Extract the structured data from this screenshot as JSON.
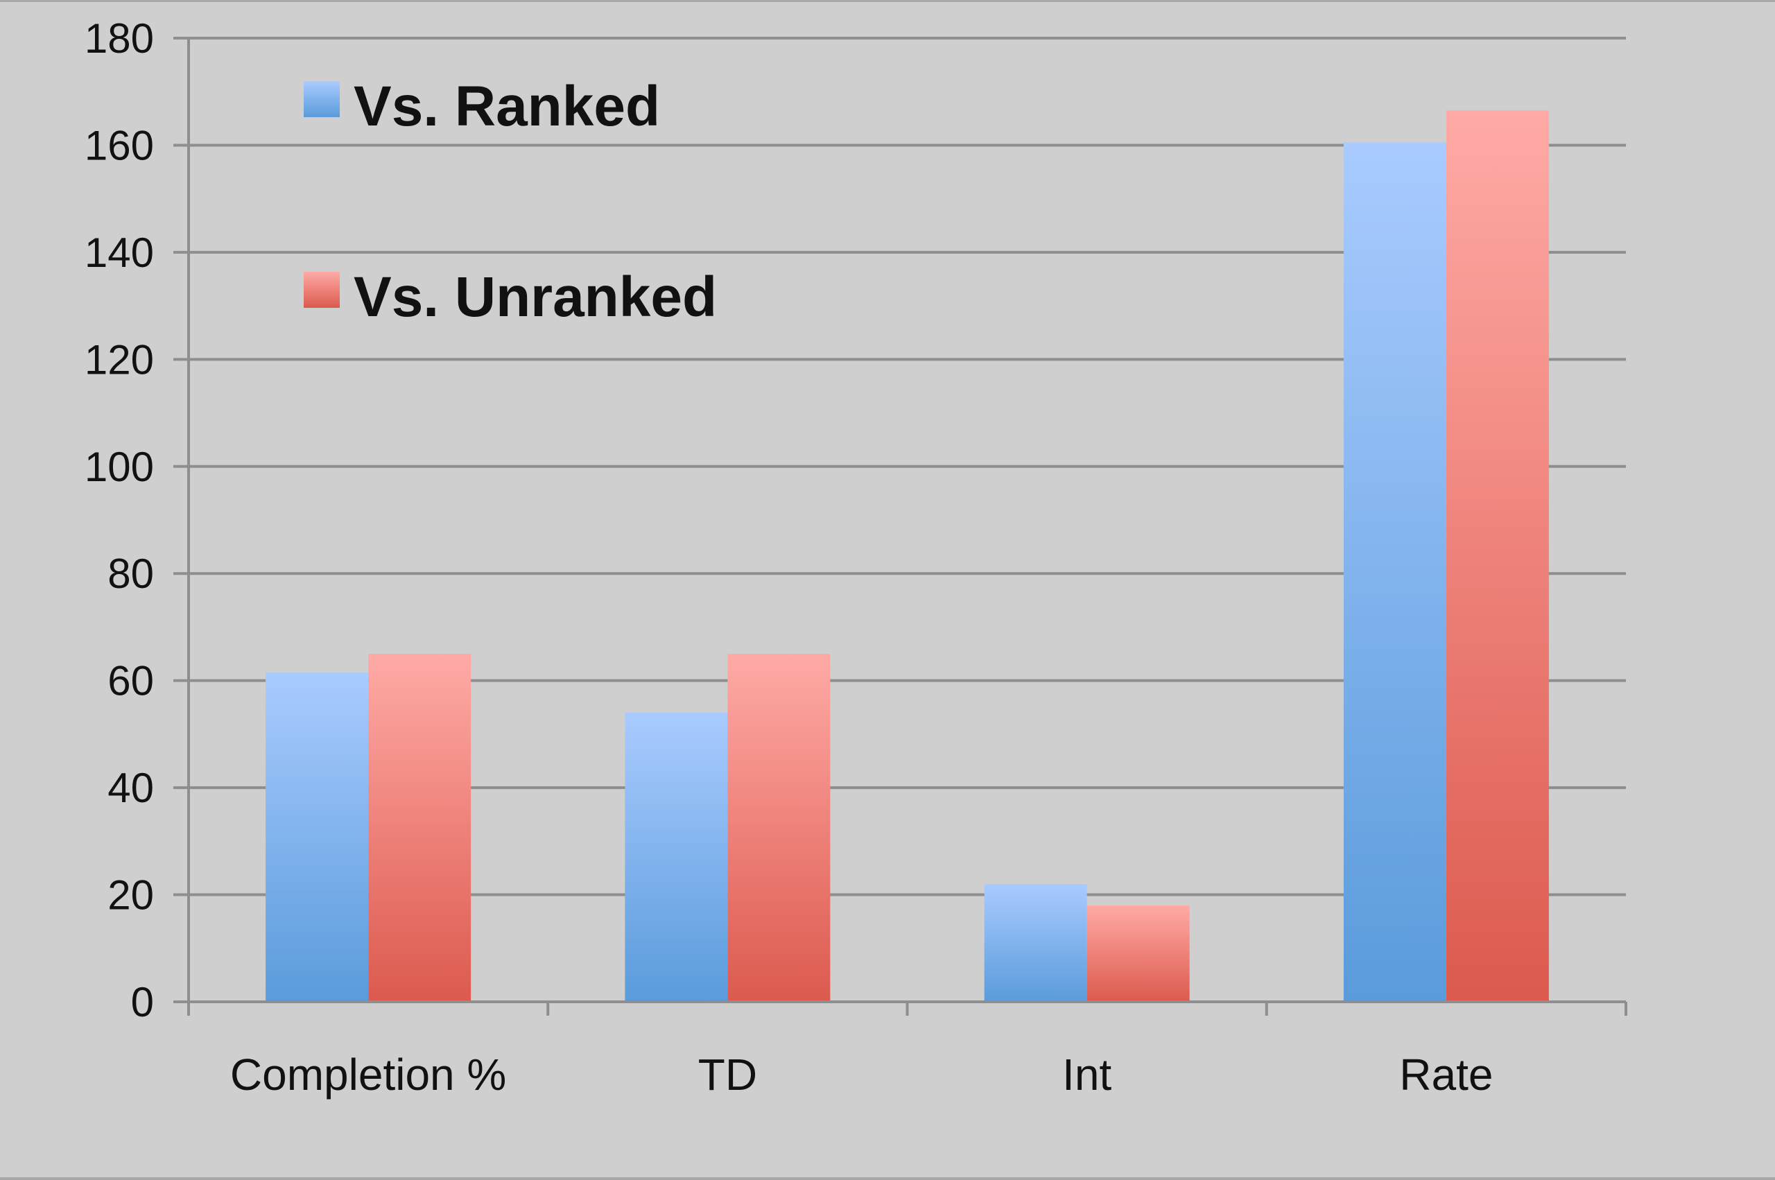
{
  "chart_data": {
    "type": "bar",
    "categories": [
      "Completion %",
      "TD",
      "Int",
      "Rate"
    ],
    "series": [
      {
        "name": "Vs. Ranked",
        "values": [
          61.5,
          54,
          22,
          160.5
        ],
        "color": "#5a9bdb",
        "color_light": "#a9cbff"
      },
      {
        "name": "Vs. Unranked",
        "values": [
          65,
          65,
          18,
          166.5
        ],
        "color": "#dc5a4e",
        "color_light": "#ffaaa6"
      }
    ],
    "ylim": [
      0,
      180
    ],
    "yticks": [
      0,
      20,
      40,
      60,
      80,
      100,
      120,
      140,
      160,
      180
    ],
    "grid": true,
    "legend_position": "top-left",
    "title": "",
    "xlabel": "",
    "ylabel": ""
  },
  "colors": {
    "background": "#cfcfcf",
    "gridline": "#8e8e8e",
    "axis": "#8e8e8e"
  }
}
